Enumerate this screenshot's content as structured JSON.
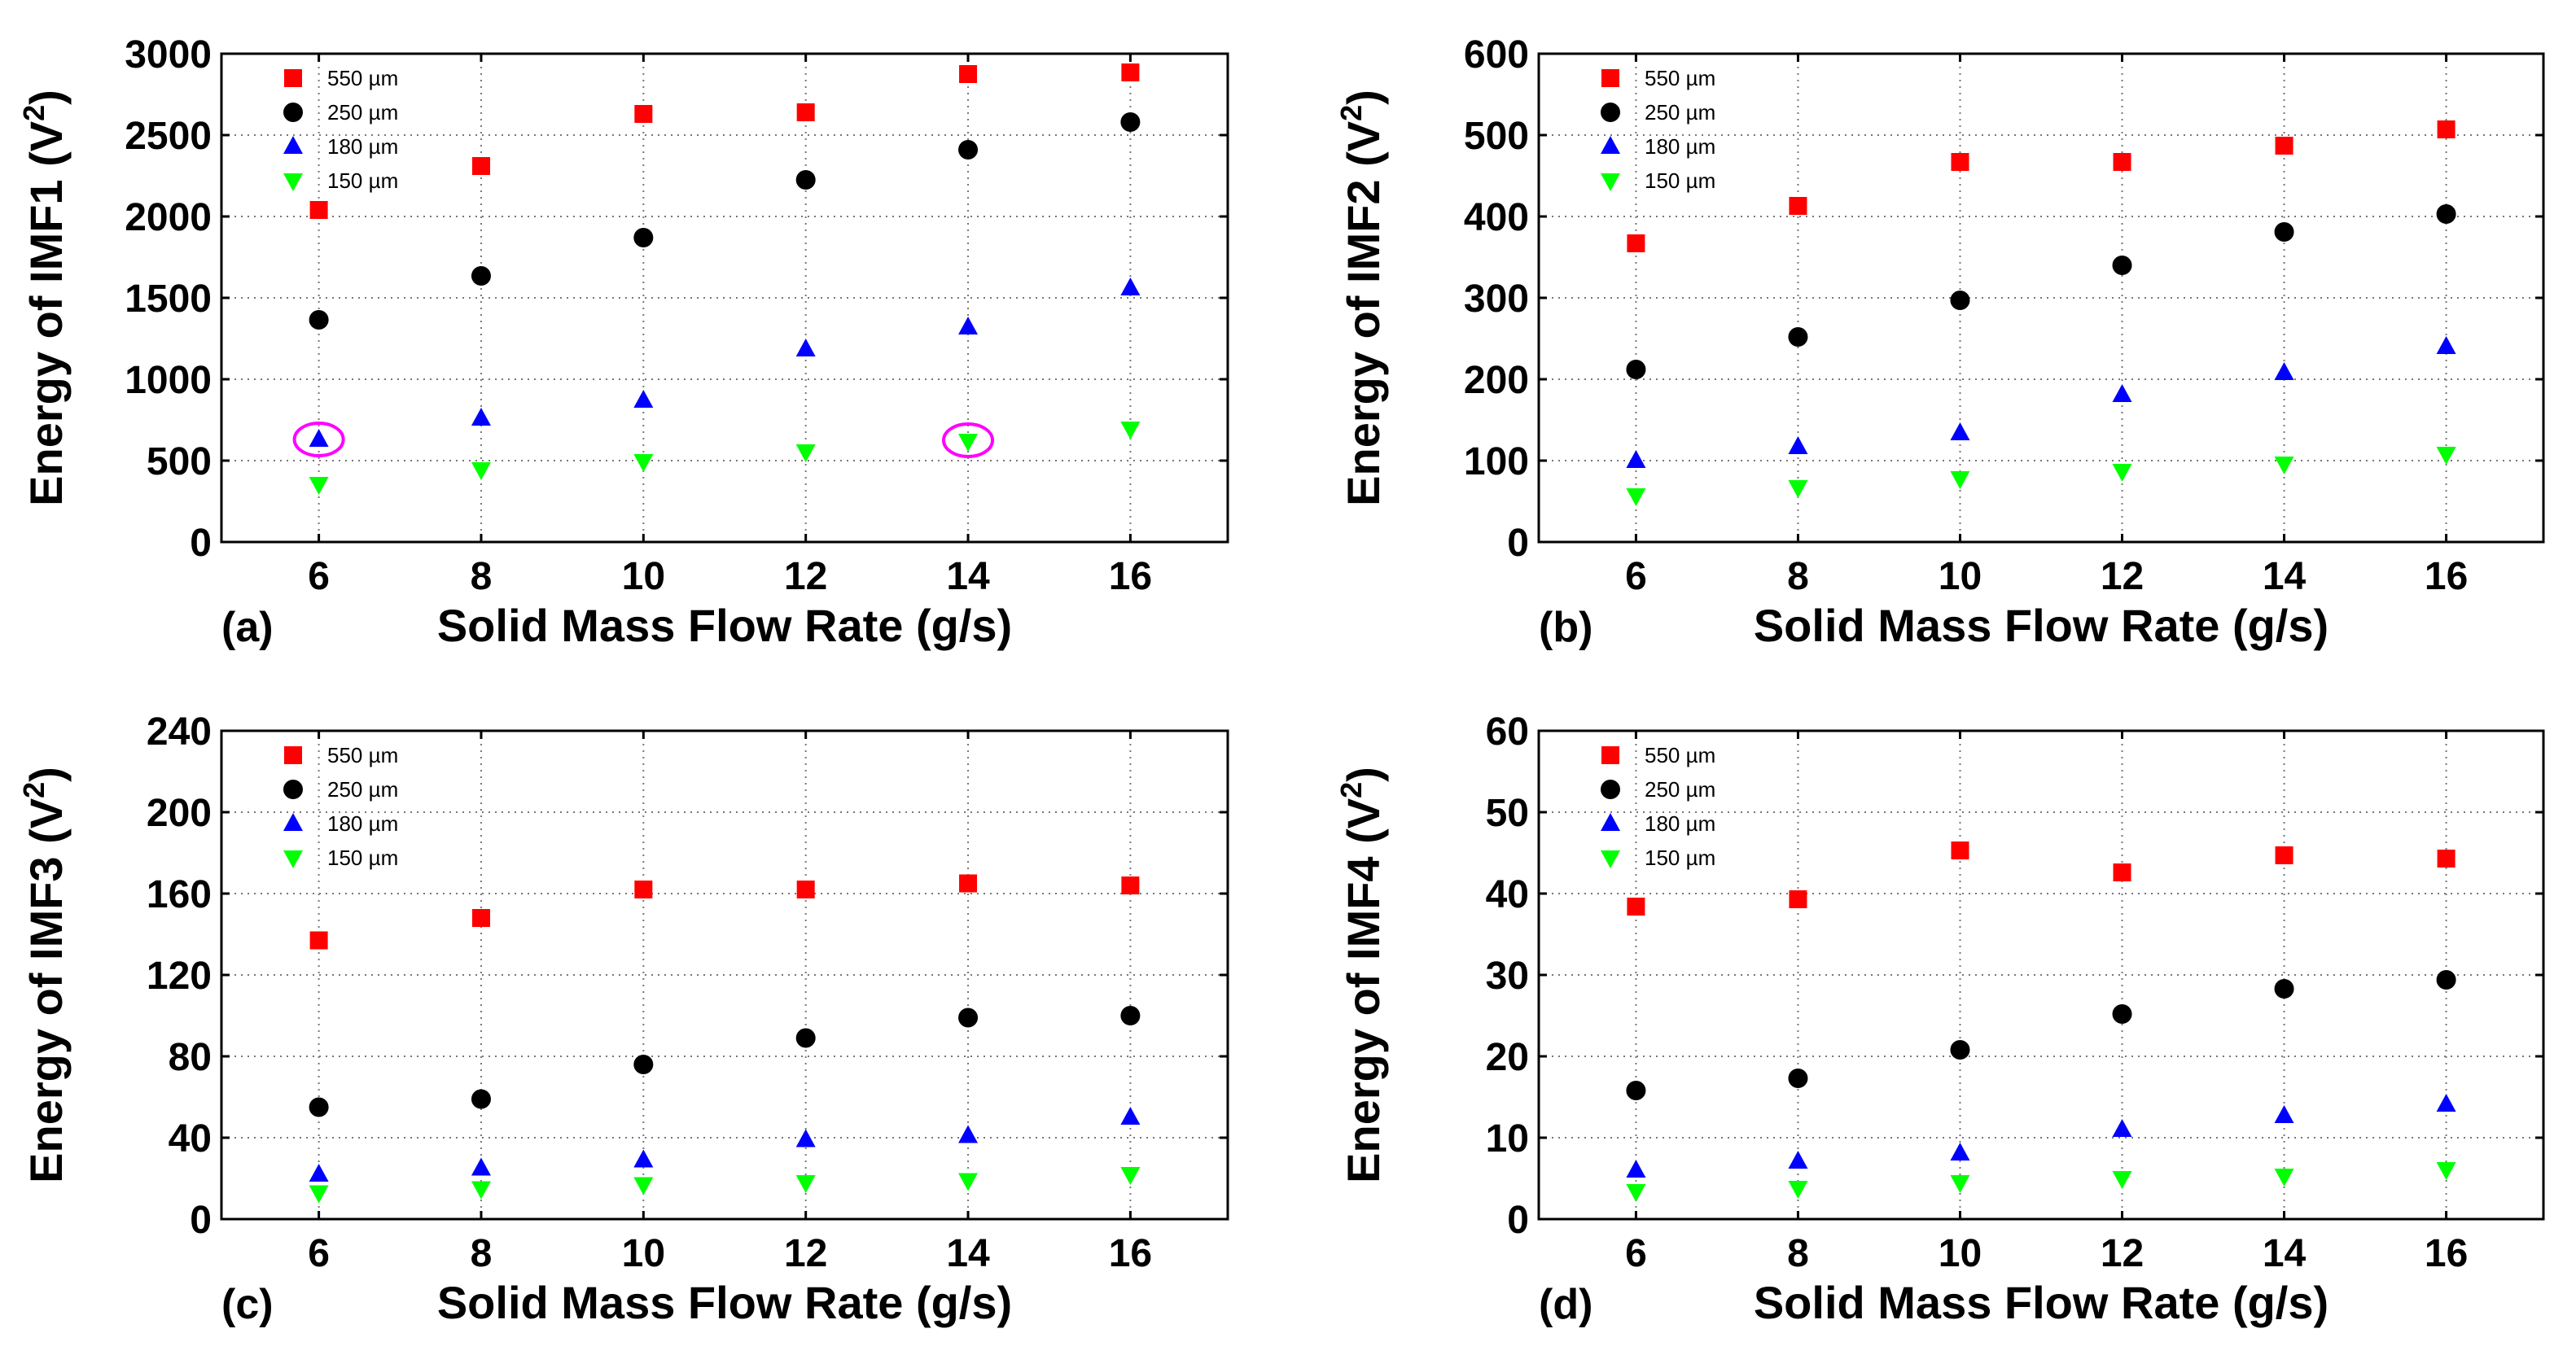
{
  "colors": {
    "series_550": "#ff0000",
    "series_250": "#000000",
    "series_180": "#0000ff",
    "series_150": "#00ff00",
    "highlight": "#ff00ff"
  },
  "chart_data": [
    {
      "id": "a",
      "type": "scatter",
      "panel_label": "(a)",
      "xlabel": "Solid Mass Flow Rate (g/s)",
      "ylabel": "Energy of IMF1 (V",
      "ylabel_sup": "2",
      "ylabel_end": ")",
      "x": [
        6,
        8,
        10,
        12,
        14,
        16
      ],
      "xlim": [
        4.8,
        17.2
      ],
      "ylim": [
        0,
        3000
      ],
      "xticks": [
        6,
        8,
        10,
        12,
        14,
        16
      ],
      "yticks": [
        0,
        500,
        1000,
        1500,
        2000,
        2500,
        3000
      ],
      "grid": true,
      "legend_position": "top-left",
      "series": [
        {
          "name": "550 µm",
          "marker": "square",
          "color_key": "series_550",
          "values": [
            2040,
            2310,
            2630,
            2640,
            2875,
            2885
          ]
        },
        {
          "name": "250 µm",
          "marker": "circle",
          "color_key": "series_250",
          "values": [
            1365,
            1635,
            1870,
            2225,
            2410,
            2580
          ]
        },
        {
          "name": "180 µm",
          "marker": "triangle-up",
          "color_key": "series_180",
          "values": [
            630,
            760,
            870,
            1185,
            1320,
            1560
          ]
        },
        {
          "name": "150 µm",
          "marker": "triangle-down",
          "color_key": "series_150",
          "values": [
            355,
            445,
            495,
            555,
            620,
            695
          ]
        }
      ],
      "highlights": [
        {
          "x": 6,
          "y": 630
        },
        {
          "x": 14,
          "y": 625
        }
      ]
    },
    {
      "id": "b",
      "type": "scatter",
      "panel_label": "(b)",
      "xlabel": "Solid Mass Flow Rate (g/s)",
      "ylabel": "Energy of IMF2 (V",
      "ylabel_sup": "2",
      "ylabel_end": ")",
      "x": [
        6,
        8,
        10,
        12,
        14,
        16
      ],
      "xlim": [
        4.8,
        17.2
      ],
      "ylim": [
        0,
        600
      ],
      "xticks": [
        6,
        8,
        10,
        12,
        14,
        16
      ],
      "yticks": [
        0,
        100,
        200,
        300,
        400,
        500,
        600
      ],
      "grid": true,
      "legend_position": "top-left",
      "series": [
        {
          "name": "550 µm",
          "marker": "square",
          "color_key": "series_550",
          "values": [
            367,
            413,
            467,
            467,
            487,
            507
          ]
        },
        {
          "name": "250 µm",
          "marker": "circle",
          "color_key": "series_250",
          "values": [
            212,
            252,
            297,
            340,
            381,
            403
          ]
        },
        {
          "name": "180 µm",
          "marker": "triangle-up",
          "color_key": "series_180",
          "values": [
            100,
            117,
            134,
            181,
            208,
            240
          ]
        },
        {
          "name": "150 µm",
          "marker": "triangle-down",
          "color_key": "series_150",
          "values": [
            57,
            67,
            78,
            87,
            96,
            108
          ]
        }
      ],
      "highlights": []
    },
    {
      "id": "c",
      "type": "scatter",
      "panel_label": "(c)",
      "xlabel": "Solid Mass Flow Rate (g/s)",
      "ylabel": "Energy of IMF3 (V",
      "ylabel_sup": "2",
      "ylabel_end": ")",
      "x": [
        6,
        8,
        10,
        12,
        14,
        16
      ],
      "xlim": [
        4.8,
        17.2
      ],
      "ylim": [
        0,
        240
      ],
      "xticks": [
        6,
        8,
        10,
        12,
        14,
        16
      ],
      "yticks": [
        0,
        40,
        80,
        120,
        160,
        200,
        240
      ],
      "grid": true,
      "legend_position": "top-left",
      "series": [
        {
          "name": "550 µm",
          "marker": "square",
          "color_key": "series_550",
          "values": [
            137,
            148,
            162,
            162,
            165,
            164
          ]
        },
        {
          "name": "250 µm",
          "marker": "circle",
          "color_key": "series_250",
          "values": [
            55,
            59,
            76,
            89,
            99,
            100
          ]
        },
        {
          "name": "180 µm",
          "marker": "triangle-up",
          "color_key": "series_180",
          "values": [
            22,
            25,
            29,
            39,
            41,
            50
          ]
        },
        {
          "name": "150 µm",
          "marker": "triangle-down",
          "color_key": "series_150",
          "values": [
            13,
            15,
            17,
            18,
            19,
            22
          ]
        }
      ],
      "highlights": []
    },
    {
      "id": "d",
      "type": "scatter",
      "panel_label": "(d)",
      "xlabel": "Solid Mass Flow Rate (g/s)",
      "ylabel": "Energy of IMF4 (V",
      "ylabel_sup": "2",
      "ylabel_end": ")",
      "x": [
        6,
        8,
        10,
        12,
        14,
        16
      ],
      "xlim": [
        4.8,
        17.2
      ],
      "ylim": [
        0,
        60
      ],
      "xticks": [
        6,
        8,
        10,
        12,
        14,
        16
      ],
      "yticks": [
        0,
        10,
        20,
        30,
        40,
        50,
        60
      ],
      "grid": true,
      "legend_position": "top-left",
      "series": [
        {
          "name": "550 µm",
          "marker": "square",
          "color_key": "series_550",
          "values": [
            38.4,
            39.3,
            45.3,
            42.6,
            44.7,
            44.3
          ]
        },
        {
          "name": "250 µm",
          "marker": "circle",
          "color_key": "series_250",
          "values": [
            15.8,
            17.3,
            20.8,
            25.2,
            28.3,
            29.4
          ]
        },
        {
          "name": "180 µm",
          "marker": "triangle-up",
          "color_key": "series_180",
          "values": [
            6.0,
            7.1,
            8.1,
            11.0,
            12.7,
            14.1
          ]
        },
        {
          "name": "150 µm",
          "marker": "triangle-down",
          "color_key": "series_150",
          "values": [
            3.4,
            3.8,
            4.5,
            5.0,
            5.3,
            6.1
          ]
        }
      ],
      "highlights": []
    }
  ]
}
